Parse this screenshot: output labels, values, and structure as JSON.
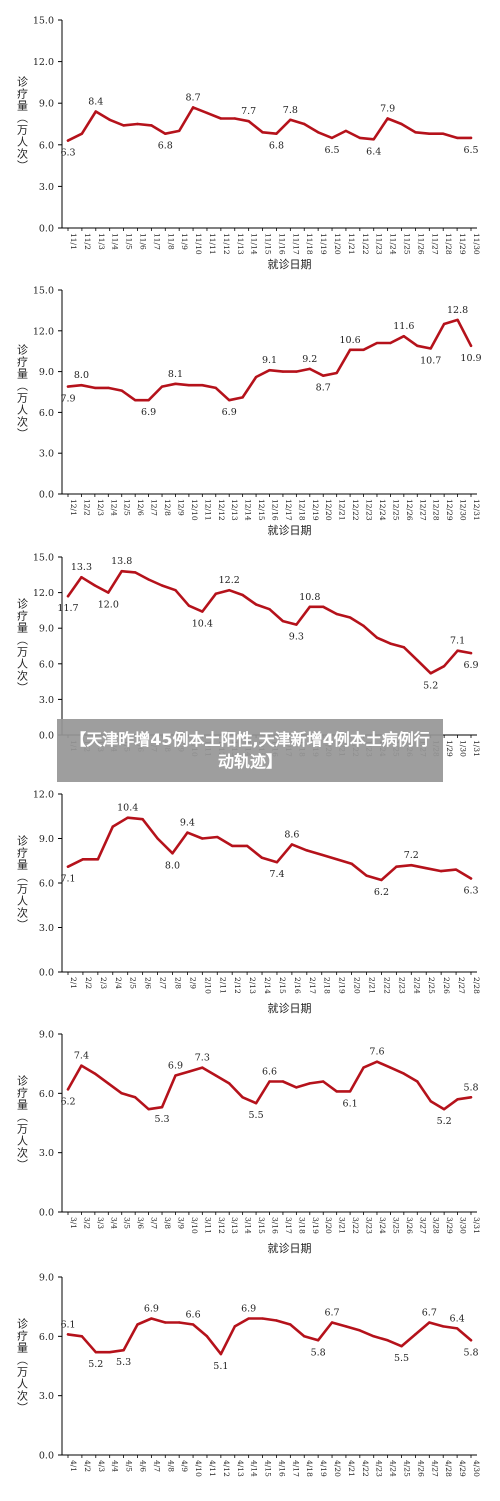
{
  "banner": {
    "headline": "【天津昨增45例本土阳性,天津新增4例本土病例行动轨迹】"
  },
  "style": {
    "line_color": "#b5121b",
    "axis_color": "#000000",
    "text_color": "#222222"
  },
  "chart_data": [
    {
      "type": "line",
      "xlabel": "就诊日期",
      "ylabel": "诊疗量（万人次）",
      "ylim": [
        0,
        15
      ],
      "yticks": [
        "0.0",
        "3.0",
        "6.0",
        "9.0",
        "12.0",
        "15.0"
      ],
      "categories": [
        "11/1",
        "11/2",
        "11/3",
        "11/4",
        "11/5",
        "11/6",
        "11/7",
        "11/8",
        "11/9",
        "11/10",
        "11/11",
        "11/12",
        "11/13",
        "11/14",
        "11/15",
        "11/16",
        "11/17",
        "11/18",
        "11/19",
        "11/20",
        "11/21",
        "11/22",
        "11/23",
        "11/24",
        "11/25",
        "11/26",
        "11/27",
        "11/28",
        "11/29",
        "11/30"
      ],
      "values": [
        6.3,
        6.8,
        8.4,
        7.8,
        7.4,
        7.5,
        7.4,
        6.8,
        7.0,
        8.7,
        8.3,
        7.9,
        7.9,
        7.7,
        6.9,
        6.8,
        7.8,
        7.5,
        6.9,
        6.5,
        7.0,
        6.5,
        6.4,
        7.9,
        7.5,
        6.9,
        6.8,
        6.8,
        6.5,
        6.5
      ],
      "labels": [
        {
          "i": 0,
          "text": "6.3",
          "pos": "below"
        },
        {
          "i": 2,
          "text": "8.4",
          "pos": "above"
        },
        {
          "i": 7,
          "text": "6.8",
          "pos": "below"
        },
        {
          "i": 9,
          "text": "8.7",
          "pos": "above"
        },
        {
          "i": 13,
          "text": "7.7",
          "pos": "above"
        },
        {
          "i": 15,
          "text": "6.8",
          "pos": "below"
        },
        {
          "i": 16,
          "text": "7.8",
          "pos": "above"
        },
        {
          "i": 19,
          "text": "6.5",
          "pos": "below"
        },
        {
          "i": 22,
          "text": "6.4",
          "pos": "below"
        },
        {
          "i": 23,
          "text": "7.9",
          "pos": "above"
        },
        {
          "i": 29,
          "text": "6.5",
          "pos": "below"
        }
      ]
    },
    {
      "type": "line",
      "xlabel": "就诊日期",
      "ylabel": "诊疗量（万人次）",
      "ylim": [
        0,
        15
      ],
      "yticks": [
        "0.0",
        "3.0",
        "6.0",
        "9.0",
        "12.0",
        "15.0"
      ],
      "categories": [
        "12/1",
        "12/2",
        "12/3",
        "12/4",
        "12/5",
        "12/6",
        "12/7",
        "12/8",
        "12/9",
        "12/10",
        "12/11",
        "12/12",
        "12/13",
        "12/14",
        "12/15",
        "12/16",
        "12/17",
        "12/18",
        "12/19",
        "12/20",
        "12/21",
        "12/22",
        "12/23",
        "12/24",
        "12/25",
        "12/26",
        "12/27",
        "12/28",
        "12/29",
        "12/30",
        "12/31"
      ],
      "values": [
        7.9,
        8.0,
        7.8,
        7.8,
        7.6,
        6.9,
        6.9,
        7.9,
        8.1,
        8.0,
        8.0,
        7.8,
        6.9,
        7.1,
        8.6,
        9.1,
        9.0,
        9.0,
        9.2,
        8.7,
        8.9,
        10.6,
        10.6,
        11.1,
        11.1,
        11.6,
        10.9,
        10.7,
        12.5,
        12.8,
        10.9
      ],
      "labels": [
        {
          "i": 0,
          "text": "7.9",
          "pos": "below"
        },
        {
          "i": 1,
          "text": "8.0",
          "pos": "above"
        },
        {
          "i": 6,
          "text": "6.9",
          "pos": "below"
        },
        {
          "i": 8,
          "text": "8.1",
          "pos": "above"
        },
        {
          "i": 12,
          "text": "6.9",
          "pos": "below"
        },
        {
          "i": 15,
          "text": "9.1",
          "pos": "above"
        },
        {
          "i": 18,
          "text": "9.2",
          "pos": "above"
        },
        {
          "i": 19,
          "text": "8.7",
          "pos": "below"
        },
        {
          "i": 21,
          "text": "10.6",
          "pos": "above"
        },
        {
          "i": 25,
          "text": "11.6",
          "pos": "above"
        },
        {
          "i": 27,
          "text": "10.7",
          "pos": "below"
        },
        {
          "i": 29,
          "text": "12.8",
          "pos": "above"
        },
        {
          "i": 30,
          "text": "10.9",
          "pos": "below"
        }
      ]
    },
    {
      "type": "line",
      "xlabel": "",
      "ylabel": "诊疗量（万人次）",
      "ylim": [
        0,
        15
      ],
      "yticks": [
        "0.0",
        "3.0",
        "6.0",
        "9.0",
        "12.0",
        "15.0"
      ],
      "categories": [
        "1/1",
        "1/2",
        "1/3",
        "1/4",
        "1/5",
        "1/6",
        "1/7",
        "1/8",
        "1/9",
        "1/10",
        "1/11",
        "1/12",
        "1/13",
        "1/14",
        "1/15",
        "1/16",
        "1/17",
        "1/18",
        "1/19",
        "1/20",
        "1/21",
        "1/22",
        "1/23",
        "1/24",
        "1/25",
        "1/26",
        "1/27",
        "1/28",
        "1/29",
        "1/30",
        "1/31"
      ],
      "values": [
        11.7,
        13.3,
        12.6,
        12.0,
        13.8,
        13.7,
        13.1,
        12.6,
        12.2,
        10.9,
        10.4,
        11.9,
        12.2,
        11.8,
        11.0,
        10.6,
        9.6,
        9.3,
        10.8,
        10.8,
        10.2,
        9.9,
        9.2,
        8.2,
        7.7,
        7.4,
        6.3,
        5.2,
        5.8,
        7.1,
        6.9
      ],
      "labels": [
        {
          "i": 0,
          "text": "11.7",
          "pos": "below"
        },
        {
          "i": 1,
          "text": "13.3",
          "pos": "above"
        },
        {
          "i": 3,
          "text": "12.0",
          "pos": "below"
        },
        {
          "i": 4,
          "text": "13.8",
          "pos": "above"
        },
        {
          "i": 10,
          "text": "10.4",
          "pos": "below"
        },
        {
          "i": 12,
          "text": "12.2",
          "pos": "above"
        },
        {
          "i": 17,
          "text": "9.3",
          "pos": "below"
        },
        {
          "i": 18,
          "text": "10.8",
          "pos": "above"
        },
        {
          "i": 27,
          "text": "5.2",
          "pos": "below"
        },
        {
          "i": 29,
          "text": "7.1",
          "pos": "above"
        },
        {
          "i": 30,
          "text": "6.9",
          "pos": "below"
        }
      ]
    },
    {
      "type": "line",
      "xlabel": "就诊日期",
      "ylabel": "诊疗量（万人次）",
      "ylim": [
        0,
        12
      ],
      "yticks": [
        "0.0",
        "3.0",
        "6.0",
        "9.0",
        "12.0"
      ],
      "categories": [
        "2/1",
        "2/2",
        "2/3",
        "2/4",
        "2/5",
        "2/6",
        "2/7",
        "2/8",
        "2/9",
        "2/10",
        "2/11",
        "2/12",
        "2/13",
        "2/14",
        "2/15",
        "2/16",
        "2/17",
        "2/18",
        "2/19",
        "2/20",
        "2/21",
        "2/22",
        "2/23",
        "2/24",
        "2/25",
        "2/26",
        "2/27",
        "2/28"
      ],
      "values": [
        7.1,
        7.6,
        7.6,
        9.8,
        10.4,
        10.3,
        9.0,
        8.0,
        9.4,
        9.0,
        9.1,
        8.5,
        8.5,
        7.7,
        7.4,
        8.6,
        8.2,
        7.9,
        7.6,
        7.3,
        6.5,
        6.2,
        7.1,
        7.2,
        7.0,
        6.8,
        6.9,
        6.3
      ],
      "labels": [
        {
          "i": 0,
          "text": "7.1",
          "pos": "below"
        },
        {
          "i": 4,
          "text": "10.4",
          "pos": "above"
        },
        {
          "i": 7,
          "text": "8.0",
          "pos": "below"
        },
        {
          "i": 8,
          "text": "9.4",
          "pos": "above"
        },
        {
          "i": 14,
          "text": "7.4",
          "pos": "below"
        },
        {
          "i": 15,
          "text": "8.6",
          "pos": "above"
        },
        {
          "i": 21,
          "text": "6.2",
          "pos": "below"
        },
        {
          "i": 23,
          "text": "7.2",
          "pos": "above"
        },
        {
          "i": 27,
          "text": "6.3",
          "pos": "below"
        }
      ]
    },
    {
      "type": "line",
      "xlabel": "就诊日期",
      "ylabel": "诊疗量（万人次）",
      "ylim": [
        0,
        9
      ],
      "yticks": [
        "0.0",
        "3.0",
        "6.0",
        "9.0"
      ],
      "categories": [
        "3/1",
        "3/2",
        "3/3",
        "3/4",
        "3/5",
        "3/6",
        "3/7",
        "3/8",
        "3/9",
        "3/10",
        "3/11",
        "3/12",
        "3/13",
        "3/14",
        "3/15",
        "3/16",
        "3/17",
        "3/18",
        "3/19",
        "3/20",
        "3/21",
        "3/22",
        "3/23",
        "3/24",
        "3/25",
        "3/26",
        "3/27",
        "3/28",
        "3/29",
        "3/30",
        "3/31"
      ],
      "values": [
        6.2,
        7.4,
        7.0,
        6.5,
        6.0,
        5.8,
        5.2,
        5.3,
        6.9,
        7.1,
        7.3,
        6.9,
        6.5,
        5.8,
        5.5,
        6.6,
        6.6,
        6.3,
        6.5,
        6.6,
        6.1,
        6.1,
        7.3,
        7.6,
        7.3,
        7.0,
        6.6,
        5.6,
        5.2,
        5.7,
        5.8
      ],
      "labels": [
        {
          "i": 0,
          "text": "6.2",
          "pos": "below"
        },
        {
          "i": 1,
          "text": "7.4",
          "pos": "above"
        },
        {
          "i": 7,
          "text": "5.3",
          "pos": "below"
        },
        {
          "i": 8,
          "text": "6.9",
          "pos": "above"
        },
        {
          "i": 10,
          "text": "7.3",
          "pos": "above"
        },
        {
          "i": 14,
          "text": "5.5",
          "pos": "below"
        },
        {
          "i": 15,
          "text": "6.6",
          "pos": "above"
        },
        {
          "i": 21,
          "text": "6.1",
          "pos": "below"
        },
        {
          "i": 23,
          "text": "7.6",
          "pos": "above"
        },
        {
          "i": 28,
          "text": "5.2",
          "pos": "below"
        },
        {
          "i": 30,
          "text": "5.8",
          "pos": "above"
        }
      ]
    },
    {
      "type": "line",
      "xlabel": "",
      "ylabel": "诊疗量（万人次）",
      "ylim": [
        0,
        9
      ],
      "yticks": [
        "0.0",
        "3.0",
        "6.0",
        "9.0"
      ],
      "categories": [
        "4/1",
        "4/2",
        "4/3",
        "4/4",
        "4/5",
        "4/6",
        "4/7",
        "4/8",
        "4/9",
        "4/10",
        "4/11",
        "4/12",
        "4/13",
        "4/14",
        "4/15",
        "4/16",
        "4/17",
        "4/18",
        "4/19",
        "4/20",
        "4/21",
        "4/22",
        "4/23",
        "4/24",
        "4/25",
        "4/26",
        "4/27",
        "4/28",
        "4/29",
        "4/30"
      ],
      "values": [
        6.1,
        6.0,
        5.2,
        5.2,
        5.3,
        6.6,
        6.9,
        6.7,
        6.7,
        6.6,
        6.0,
        5.1,
        6.5,
        6.9,
        6.9,
        6.8,
        6.6,
        6.0,
        5.8,
        6.7,
        6.5,
        6.3,
        6.0,
        5.8,
        5.5,
        6.1,
        6.7,
        6.5,
        6.4,
        5.8
      ],
      "labels": [
        {
          "i": 0,
          "text": "6.1",
          "pos": "above"
        },
        {
          "i": 2,
          "text": "5.2",
          "pos": "below"
        },
        {
          "i": 4,
          "text": "5.3",
          "pos": "below"
        },
        {
          "i": 6,
          "text": "6.9",
          "pos": "above"
        },
        {
          "i": 9,
          "text": "6.6",
          "pos": "above"
        },
        {
          "i": 11,
          "text": "5.1",
          "pos": "below"
        },
        {
          "i": 13,
          "text": "6.9",
          "pos": "above"
        },
        {
          "i": 18,
          "text": "5.8",
          "pos": "below"
        },
        {
          "i": 19,
          "text": "6.7",
          "pos": "above"
        },
        {
          "i": 24,
          "text": "5.5",
          "pos": "below"
        },
        {
          "i": 26,
          "text": "6.7",
          "pos": "above"
        },
        {
          "i": 28,
          "text": "6.4",
          "pos": "above"
        },
        {
          "i": 29,
          "text": "5.8",
          "pos": "below"
        }
      ]
    }
  ]
}
